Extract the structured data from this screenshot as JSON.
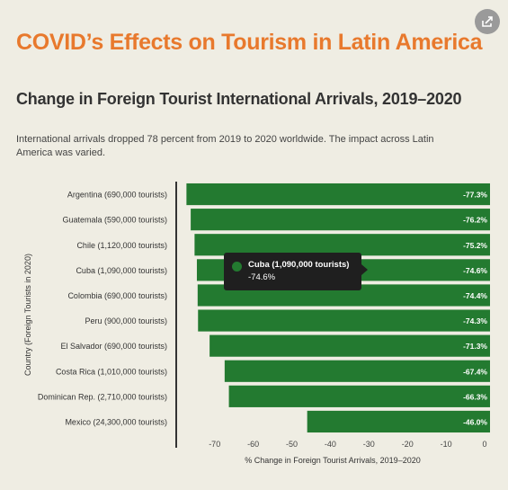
{
  "header": {
    "title": "COVID’s Effects on Tourism in Latin America",
    "subtitle": "Change in Foreign Tourist International Arrivals, 2019–2020",
    "description": "International arrivals dropped 78 percent from 2019 to 2020 worldwide. The impact across Latin America was varied."
  },
  "share_icon": "share-icon",
  "colors": {
    "title": "#e8792d",
    "bar": "#237a30",
    "tooltip_bg": "#1f1f1f"
  },
  "tooltip": {
    "label": "Cuba (1,090,000 tourists)",
    "value": "-74.6%"
  },
  "chart_data": {
    "type": "bar",
    "orientation": "horizontal",
    "categories": [
      "Argentina (690,000 tourists)",
      "Guatemala (590,000 tourists)",
      "Chile (1,120,000 tourists)",
      "Cuba (1,090,000 tourists)",
      "Colombia (690,000 tourists)",
      "Peru (900,000 tourists)",
      "El Salvador (690,000 tourists)",
      "Costa Rica (1,010,000 tourists)",
      "Dominican Rep. (2,710,000 tourists)",
      "Mexico (24,300,000 tourists)"
    ],
    "values": [
      -77.3,
      -76.2,
      -75.2,
      -74.6,
      -74.4,
      -74.3,
      -71.3,
      -67.4,
      -66.3,
      -46.0
    ],
    "value_labels": [
      "-77.3%",
      "-76.2%",
      "-75.2%",
      "-74.6%",
      "-74.4%",
      "-74.3%",
      "-71.3%",
      "-67.4%",
      "-66.3%",
      "-46.0%"
    ],
    "xlabel": "% Change in Foreign Tourist Arrivals, 2019–2020",
    "ylabel": "Country (Foreign Tourists in 2020)",
    "xlim": [
      -80,
      0
    ],
    "xticks": [
      -70,
      -60,
      -50,
      -40,
      -30,
      -20,
      -10,
      0
    ],
    "grid": false,
    "legend": "none"
  }
}
